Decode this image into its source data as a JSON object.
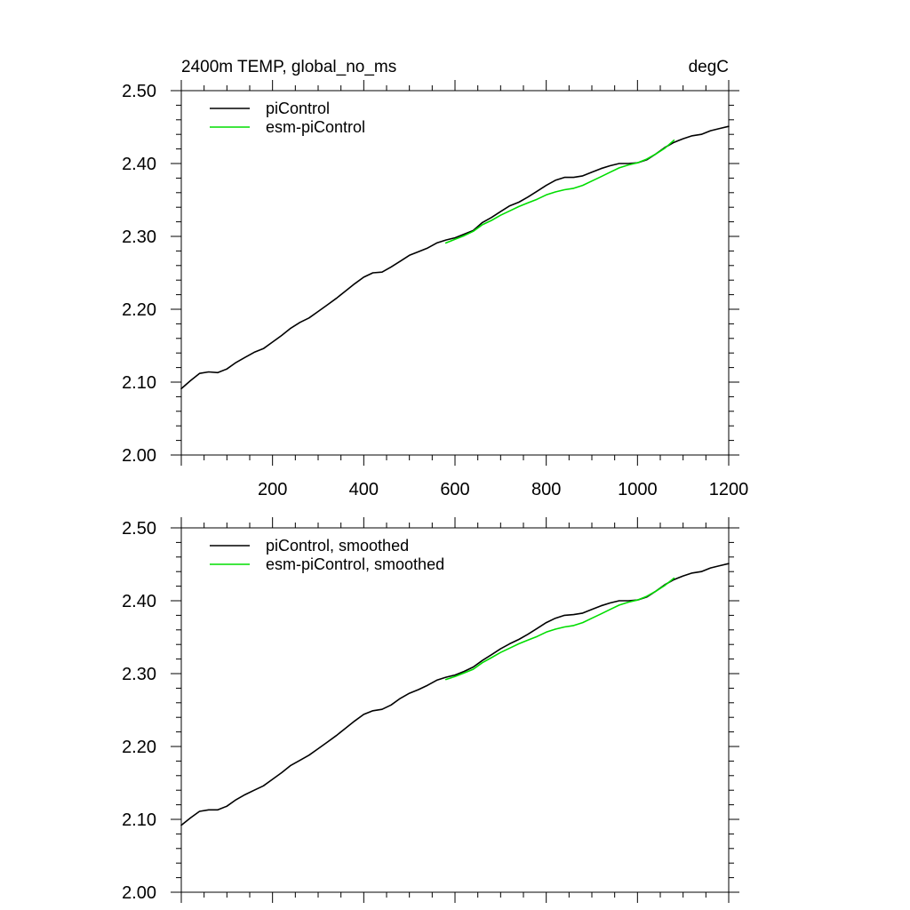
{
  "chart_data": [
    {
      "type": "line",
      "title_left": "2400m TEMP, global_no_ms",
      "title_right": "degC",
      "xlim": [
        0,
        1200
      ],
      "ylim": [
        2.0,
        2.5
      ],
      "x_ticks": [
        200,
        400,
        600,
        800,
        1000,
        1200
      ],
      "x_tick_labels": [
        "200",
        "400",
        "600",
        "800",
        "1000",
        "1200"
      ],
      "y_ticks": [
        2.0,
        2.1,
        2.2,
        2.3,
        2.4,
        2.5
      ],
      "y_tick_labels": [
        "2.00",
        "2.10",
        "2.20",
        "2.30",
        "2.40",
        "2.50"
      ],
      "legend_position": "top-left",
      "series": [
        {
          "name": "piControl",
          "color": "#000000",
          "x": [
            0,
            20,
            40,
            60,
            80,
            100,
            120,
            140,
            160,
            180,
            200,
            220,
            240,
            260,
            280,
            300,
            320,
            340,
            360,
            380,
            400,
            420,
            440,
            460,
            480,
            500,
            520,
            540,
            560,
            580,
            600,
            620,
            640,
            660,
            680,
            700,
            720,
            740,
            760,
            780,
            800,
            820,
            840,
            860,
            880,
            900,
            920,
            940,
            960,
            980,
            1000,
            1020,
            1040,
            1060,
            1080,
            1100,
            1120,
            1140,
            1160,
            1180,
            1200
          ],
          "y": [
            2.091,
            2.102,
            2.112,
            2.114,
            2.113,
            2.118,
            2.127,
            2.134,
            2.141,
            2.146,
            2.155,
            2.164,
            2.174,
            2.182,
            2.188,
            2.197,
            2.206,
            2.215,
            2.225,
            2.235,
            2.244,
            2.25,
            2.251,
            2.258,
            2.266,
            2.274,
            2.279,
            2.284,
            2.291,
            2.295,
            2.298,
            2.303,
            2.308,
            2.319,
            2.326,
            2.334,
            2.342,
            2.347,
            2.354,
            2.362,
            2.37,
            2.377,
            2.381,
            2.381,
            2.383,
            2.388,
            2.393,
            2.397,
            2.4,
            2.4,
            2.401,
            2.405,
            2.413,
            2.422,
            2.429,
            2.434,
            2.438,
            2.44,
            2.445,
            2.448,
            2.451
          ]
        },
        {
          "name": "esm-piControl",
          "color": "#00dd00",
          "x": [
            580,
            600,
            620,
            640,
            660,
            680,
            700,
            720,
            740,
            760,
            780,
            800,
            820,
            840,
            860,
            880,
            900,
            920,
            940,
            960,
            980,
            1000,
            1020,
            1040,
            1060,
            1080
          ],
          "y": [
            2.291,
            2.296,
            2.301,
            2.307,
            2.316,
            2.322,
            2.329,
            2.335,
            2.341,
            2.346,
            2.351,
            2.357,
            2.361,
            2.364,
            2.366,
            2.37,
            2.376,
            2.382,
            2.388,
            2.394,
            2.398,
            2.401,
            2.406,
            2.413,
            2.421,
            2.432
          ]
        }
      ]
    },
    {
      "type": "line",
      "xlim": [
        0,
        1200
      ],
      "ylim": [
        2.0,
        2.5
      ],
      "y_ticks": [
        2.0,
        2.1,
        2.2,
        2.3,
        2.4,
        2.5
      ],
      "y_tick_labels": [
        "2.00",
        "2.10",
        "2.20",
        "2.30",
        "2.40",
        "2.50"
      ],
      "legend_position": "top-left",
      "series": [
        {
          "name": "piControl, smoothed",
          "color": "#000000",
          "x": [
            0,
            20,
            40,
            60,
            80,
            100,
            120,
            140,
            160,
            180,
            200,
            220,
            240,
            260,
            280,
            300,
            320,
            340,
            360,
            380,
            400,
            420,
            440,
            460,
            480,
            500,
            520,
            540,
            560,
            580,
            600,
            620,
            640,
            660,
            680,
            700,
            720,
            740,
            760,
            780,
            800,
            820,
            840,
            860,
            880,
            900,
            920,
            940,
            960,
            980,
            1000,
            1020,
            1040,
            1060,
            1080,
            1100,
            1120,
            1140,
            1160,
            1180,
            1200
          ],
          "y": [
            2.092,
            2.102,
            2.111,
            2.113,
            2.113,
            2.118,
            2.127,
            2.134,
            2.14,
            2.146,
            2.155,
            2.164,
            2.174,
            2.181,
            2.188,
            2.197,
            2.206,
            2.215,
            2.225,
            2.235,
            2.244,
            2.249,
            2.251,
            2.257,
            2.266,
            2.273,
            2.278,
            2.284,
            2.291,
            2.295,
            2.298,
            2.303,
            2.309,
            2.318,
            2.326,
            2.334,
            2.341,
            2.347,
            2.354,
            2.362,
            2.37,
            2.376,
            2.38,
            2.381,
            2.383,
            2.388,
            2.393,
            2.397,
            2.4,
            2.4,
            2.401,
            2.405,
            2.413,
            2.422,
            2.429,
            2.434,
            2.438,
            2.44,
            2.445,
            2.448,
            2.451
          ]
        },
        {
          "name": "esm-piControl, smoothed",
          "color": "#00dd00",
          "x": [
            580,
            600,
            620,
            640,
            660,
            680,
            700,
            720,
            740,
            760,
            780,
            800,
            820,
            840,
            860,
            880,
            900,
            920,
            940,
            960,
            980,
            1000,
            1020,
            1040,
            1060,
            1080
          ],
          "y": [
            2.292,
            2.296,
            2.301,
            2.306,
            2.315,
            2.322,
            2.329,
            2.335,
            2.341,
            2.346,
            2.351,
            2.357,
            2.361,
            2.364,
            2.366,
            2.37,
            2.376,
            2.382,
            2.388,
            2.394,
            2.398,
            2.401,
            2.406,
            2.413,
            2.421,
            2.431
          ]
        }
      ]
    }
  ]
}
